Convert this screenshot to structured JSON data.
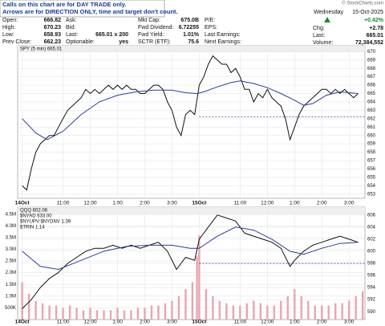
{
  "header": {
    "notes": [
      "Calls on this chart are for DAY TRADE only.",
      "Arrows are for DIRECTION ONLY, time and target don't count."
    ],
    "copyright": "© StockCharts.com",
    "rows": [
      [
        {
          "label": "Open:",
          "value": "666.82"
        },
        {
          "label": "Ask:"
        },
        {
          "label": "Mkt Cap:",
          "value": "675.0B"
        },
        {
          "label": "P/E:"
        }
      ],
      [
        {
          "label": "High:",
          "value": "670.23"
        },
        {
          "label": "Bid:"
        },
        {
          "label": "Fwd Dividend:",
          "value": "6.72255"
        },
        {
          "label": "EPS:"
        }
      ],
      [
        {
          "label": "Low:",
          "value": "658.93"
        },
        {
          "label": "Last:",
          "value": "665.01 x 200"
        },
        {
          "label": "Fwd Yield:",
          "value": "1.01%"
        },
        {
          "label": "Last Earnings:"
        }
      ],
      [
        {
          "label": "Prev Close:",
          "value": "662.23"
        },
        {
          "label": "Optionable:",
          "value": "yes"
        },
        {
          "label": "SCTR (ETF):",
          "value": "75.6"
        },
        {
          "label": "Next Earnings:"
        }
      ]
    ],
    "day": "Wednesday",
    "date": "15-Oct-2025",
    "change_pct": "+0.42%",
    "stats": [
      {
        "label": "Chg:",
        "value": "+2.78"
      },
      {
        "label": "Last:",
        "value": "665.01"
      },
      {
        "label": "Volume:",
        "value": "72,384,552"
      }
    ]
  },
  "chart_data": [
    {
      "type": "line",
      "legend": [
        "SPY (5 min) 665.01"
      ],
      "xlim": [
        -2,
        151
      ],
      "xticks": [
        {
          "value": 0,
          "label": "14Oct"
        },
        {
          "value": 18,
          "label": "11:00"
        },
        {
          "value": 30,
          "label": "12:00"
        },
        {
          "value": 42,
          "label": "1:00"
        },
        {
          "value": 54,
          "label": "2:00"
        },
        {
          "value": 66,
          "label": "3:00"
        },
        {
          "value": 78,
          "label": "15Oct"
        },
        {
          "value": 96,
          "label": "11:00"
        },
        {
          "value": 108,
          "label": "12:00"
        },
        {
          "value": 120,
          "label": "1:00"
        },
        {
          "value": 132,
          "label": "2:00"
        },
        {
          "value": 144,
          "label": "3:00"
        }
      ],
      "ylim": [
        652.5,
        670.7
      ],
      "yticks": [
        653,
        654,
        655,
        656,
        657,
        658,
        659,
        660,
        661,
        662,
        663,
        664,
        665,
        666,
        667,
        668,
        669,
        670
      ],
      "grid": true,
      "reference": {
        "value": 662.23,
        "x": 78,
        "color": "#1a237e"
      },
      "series": [
        {
          "name": "SPY",
          "color": "#111111",
          "x": [
            0,
            2,
            4,
            6,
            8,
            10,
            12,
            14,
            16,
            18,
            20,
            22,
            24,
            26,
            28,
            30,
            32,
            34,
            36,
            38,
            40,
            42,
            44,
            46,
            48,
            50,
            52,
            54,
            56,
            58,
            60,
            62,
            64,
            66,
            68,
            70,
            72,
            74,
            76,
            78,
            80,
            82,
            84,
            86,
            88,
            90,
            92,
            94,
            96,
            98,
            100,
            102,
            104,
            106,
            108,
            110,
            112,
            114,
            116,
            118,
            120,
            122,
            124,
            126,
            128,
            130,
            132,
            134,
            136,
            138,
            140,
            142,
            144,
            146,
            148
          ],
          "values": [
            654,
            653.5,
            656,
            658,
            659,
            659.5,
            660,
            660,
            661,
            662,
            663,
            663.5,
            664,
            664.5,
            665.5,
            665,
            665.5,
            665,
            665.5,
            666,
            665.5,
            666,
            665.5,
            666,
            665.5,
            665.5,
            665,
            665,
            665.5,
            666,
            666,
            665.5,
            664,
            663,
            661,
            660,
            662.5,
            663,
            662.5,
            666,
            667,
            668.5,
            669.5,
            669,
            668.5,
            668.5,
            667.5,
            668,
            667,
            665.5,
            665.5,
            664,
            665,
            664.5,
            665.5,
            664.5,
            664,
            663.5,
            662,
            659.5,
            661,
            662.5,
            663.5,
            664,
            664.5,
            665,
            665.5,
            665.5,
            665,
            665.5,
            665,
            665.5,
            665,
            664.5,
            665
          ]
        },
        {
          "name": "MA",
          "color": "#2b3a9c",
          "x": [
            0,
            6,
            11,
            18,
            26,
            34,
            42,
            50,
            58,
            66,
            72,
            77,
            80,
            86,
            92,
            96,
            102,
            108,
            114,
            120,
            124,
            128,
            134,
            140,
            148
          ],
          "values": [
            662,
            660.3,
            659.5,
            660.5,
            662.5,
            664,
            664.8,
            665.2,
            665.4,
            665.4,
            665.1,
            665,
            665.2,
            665.8,
            666.3,
            666.5,
            666.2,
            665.7,
            665,
            664.2,
            663.6,
            663.8,
            664.8,
            665.2,
            665
          ]
        }
      ]
    },
    {
      "type": "line",
      "legend": [
        "QQQ 602.08",
        "$NYAD 633.00",
        "$NYUPV:$NYDNV 1.39",
        "$TRIN 1.14"
      ],
      "xlim": [
        -2,
        151
      ],
      "xticks": [
        {
          "value": 0,
          "label": "14Oct"
        },
        {
          "value": 18,
          "label": "11:00"
        },
        {
          "value": 30,
          "label": "12:00"
        },
        {
          "value": 42,
          "label": "1:00"
        },
        {
          "value": 54,
          "label": "2:00"
        },
        {
          "value": 66,
          "label": "3:00"
        },
        {
          "value": 78,
          "label": "15Oct"
        },
        {
          "value": 96,
          "label": "11:00"
        },
        {
          "value": 108,
          "label": "12:00"
        },
        {
          "value": 120,
          "label": "1:00"
        },
        {
          "value": 132,
          "label": "2:00"
        },
        {
          "value": 144,
          "label": "3:00"
        }
      ],
      "ylim": [
        0,
        4.8
      ],
      "yticks": [
        {
          "value": 0.5,
          "label": "500K"
        },
        {
          "value": 1,
          "label": "1.0M"
        },
        {
          "value": 1.5,
          "label": "1.5M"
        },
        {
          "value": 2,
          "label": "2.0M"
        },
        {
          "value": 2.5,
          "label": "2.5M"
        },
        {
          "value": 3,
          "label": "3.0M"
        },
        {
          "value": 3.5,
          "label": "3.5M"
        },
        {
          "value": 4,
          "label": "4.0M"
        },
        {
          "value": 4.5,
          "label": "4.5M"
        }
      ],
      "y2lim": [
        588.7,
        607.3
      ],
      "y2ticks": [
        590,
        592,
        594,
        596,
        598,
        600,
        602,
        604,
        606
      ],
      "grid": true,
      "reference": {
        "value": 598,
        "x": 78,
        "color": "#1a237e",
        "axis": "y2"
      },
      "series": [
        {
          "name": "Volume",
          "type": "bar",
          "color": "#e8a6ae",
          "x": [
            0,
            3,
            6,
            9,
            12,
            15,
            18,
            21,
            24,
            27,
            30,
            33,
            36,
            39,
            42,
            45,
            48,
            51,
            54,
            57,
            60,
            63,
            66,
            69,
            72,
            75,
            77,
            78,
            81,
            84,
            87,
            90,
            93,
            96,
            99,
            102,
            105,
            108,
            111,
            114,
            117,
            120,
            123,
            126,
            129,
            132,
            135,
            138,
            141,
            144,
            147,
            150
          ],
          "values": [
            1.6,
            1.1,
            0.8,
            0.7,
            0.6,
            0.6,
            0.5,
            0.6,
            0.5,
            0.4,
            0.5,
            0.4,
            0.4,
            0.4,
            0.5,
            0.4,
            0.4,
            0.5,
            0.5,
            0.6,
            0.6,
            0.7,
            0.8,
            1.0,
            1.3,
            1.6,
            2.7,
            3.6,
            1.3,
            1.0,
            0.8,
            0.7,
            0.6,
            0.6,
            0.7,
            0.8,
            0.7,
            0.6,
            0.6,
            0.8,
            1.0,
            1.3,
            1.0,
            0.8,
            0.6,
            0.6,
            0.6,
            0.7,
            0.7,
            0.8,
            1.0,
            1.2
          ]
        },
        {
          "name": "QQQ",
          "axis": "y2",
          "color": "#111111",
          "x": [
            0,
            4,
            8,
            12,
            16,
            20,
            24,
            28,
            32,
            36,
            40,
            44,
            48,
            52,
            56,
            60,
            64,
            68,
            72,
            76,
            78,
            82,
            86,
            90,
            94,
            98,
            102,
            106,
            110,
            114,
            118,
            120,
            124,
            128,
            132,
            136,
            140,
            144,
            148
          ],
          "values": [
            590.5,
            592,
            594,
            595.5,
            596.5,
            598,
            599,
            600,
            600.5,
            600.5,
            601,
            600.5,
            601,
            600.5,
            601,
            601.5,
            600,
            597,
            599,
            598.5,
            602,
            604,
            606,
            605.5,
            605,
            603,
            602.5,
            602,
            601.5,
            600.5,
            597.5,
            598.5,
            600,
            601,
            601.5,
            602,
            602.5,
            602,
            601.5
          ]
        },
        {
          "name": "QQQ MA",
          "axis": "y2",
          "color": "#2b3a9c",
          "x": [
            0,
            8,
            16,
            26,
            36,
            46,
            56,
            66,
            74,
            78,
            86,
            94,
            102,
            110,
            118,
            124,
            132,
            140,
            148
          ],
          "values": [
            600,
            597.5,
            597,
            598.5,
            600,
            600.8,
            601,
            601,
            600.5,
            600.5,
            602.5,
            604,
            603.5,
            602,
            600,
            599.5,
            600.5,
            601.3,
            601.5
          ]
        }
      ]
    }
  ]
}
